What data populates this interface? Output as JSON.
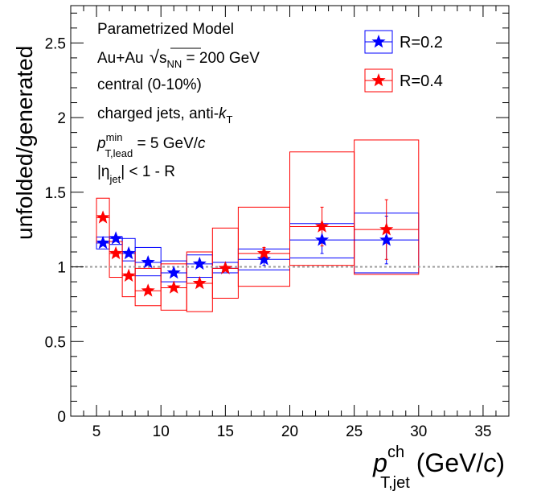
{
  "chart_data": {
    "type": "scatter",
    "ylabel": "unfolded/generated",
    "xlabel_main": "p",
    "xlabel_sup": "ch",
    "xlabel_sub": "T,jet",
    "xlabel_unit_open": "(GeV/",
    "xlabel_unit_c": "c",
    "xlabel_unit_close": ")",
    "xlim": [
      3,
      37
    ],
    "ylim": [
      0,
      2.75
    ],
    "xticks": [
      5,
      10,
      15,
      20,
      25,
      30,
      35
    ],
    "xtick_labels": [
      "5",
      "10",
      "15",
      "20",
      "25",
      "30",
      "35"
    ],
    "yticks": [
      0,
      0.5,
      1,
      1.5,
      2,
      2.5
    ],
    "ytick_labels": [
      "0",
      "0.5",
      "1",
      "1.5",
      "2",
      "2.5"
    ],
    "reference_line": 1,
    "annotations": {
      "line1": "Parametrized Model",
      "line2_a": "Au+Au ",
      "line2_sqrt": "s",
      "line2_sub": "NN",
      "line2_b": " = 200 GeV",
      "line3": "central (0-10%)",
      "line4_a": "charged jets, anti-",
      "line4_k": "k",
      "line4_sub": "T",
      "line5_p": "p",
      "line5_sup": "min",
      "line5_sub": "T,lead",
      "line5_b": " = 5 GeV/",
      "line5_c": "c",
      "line6_a": "|η",
      "line6_sub": "jet",
      "line6_b": "| < 1 - R"
    },
    "series": [
      {
        "name": "R=0.2",
        "color": "#0000ff",
        "points": [
          {
            "x": 5.5,
            "y": 1.16,
            "xlo": 5,
            "xhi": 6,
            "syslo": 1.12,
            "syshi": 1.2,
            "err": 0.01
          },
          {
            "x": 6.5,
            "y": 1.19,
            "xlo": 6,
            "xhi": 7,
            "syslo": 1.15,
            "syshi": 1.2,
            "err": 0.01
          },
          {
            "x": 7.5,
            "y": 1.09,
            "xlo": 7,
            "xhi": 8,
            "syslo": 1.04,
            "syshi": 1.19,
            "err": 0.01
          },
          {
            "x": 9,
            "y": 1.03,
            "xlo": 8,
            "xhi": 10,
            "syslo": 0.94,
            "syshi": 1.13,
            "err": 0.01
          },
          {
            "x": 11,
            "y": 0.96,
            "xlo": 10,
            "xhi": 12,
            "syslo": 0.9,
            "syshi": 1.04,
            "err": 0.01
          },
          {
            "x": 13,
            "y": 1.02,
            "xlo": 12,
            "xhi": 14,
            "syslo": 0.93,
            "syshi": 1.08,
            "err": 0.01
          },
          {
            "x": 15,
            "y": 0.99,
            "xlo": 14,
            "xhi": 16,
            "syslo": 0.96,
            "syshi": 1.03,
            "err": 0.02
          },
          {
            "x": 18,
            "y": 1.05,
            "xlo": 16,
            "xhi": 20,
            "syslo": 0.98,
            "syshi": 1.12,
            "err": 0.04
          },
          {
            "x": 22.5,
            "y": 1.18,
            "xlo": 20,
            "xhi": 25,
            "syslo": 1.06,
            "syshi": 1.29,
            "err": 0.09
          },
          {
            "x": 27.5,
            "y": 1.18,
            "xlo": 25,
            "xhi": 30,
            "syslo": 0.96,
            "syshi": 1.36,
            "err": 0.16
          }
        ]
      },
      {
        "name": "R=0.4",
        "color": "#ff0000",
        "points": [
          {
            "x": 5.5,
            "y": 1.33,
            "xlo": 5,
            "xhi": 6,
            "syslo": 1.16,
            "syshi": 1.46,
            "err": 0.02
          },
          {
            "x": 6.5,
            "y": 1.09,
            "xlo": 6,
            "xhi": 7,
            "syslo": 0.93,
            "syshi": 1.17,
            "err": 0.01
          },
          {
            "x": 7.5,
            "y": 0.94,
            "xlo": 7,
            "xhi": 8,
            "syslo": 0.8,
            "syshi": 1.1,
            "err": 0.01
          },
          {
            "x": 9,
            "y": 0.84,
            "xlo": 8,
            "xhi": 10,
            "syslo": 0.74,
            "syshi": 0.99,
            "err": 0.01
          },
          {
            "x": 11,
            "y": 0.86,
            "xlo": 10,
            "xhi": 12,
            "syslo": 0.71,
            "syshi": 1.02,
            "err": 0.01
          },
          {
            "x": 13,
            "y": 0.89,
            "xlo": 12,
            "xhi": 14,
            "syslo": 0.7,
            "syshi": 1.1,
            "err": 0.01
          },
          {
            "x": 15,
            "y": 0.99,
            "xlo": 14,
            "xhi": 16,
            "syslo": 0.79,
            "syshi": 1.26,
            "err": 0.02
          },
          {
            "x": 18,
            "y": 1.09,
            "xlo": 16,
            "xhi": 20,
            "syslo": 0.87,
            "syshi": 1.4,
            "err": 0.04
          },
          {
            "x": 22.5,
            "y": 1.27,
            "xlo": 20,
            "xhi": 25,
            "syslo": 1.01,
            "syshi": 1.77,
            "err": 0.13
          },
          {
            "x": 27.5,
            "y": 1.25,
            "xlo": 25,
            "xhi": 30,
            "syslo": 0.95,
            "syshi": 1.85,
            "err": 0.2
          }
        ]
      }
    ],
    "legend": [
      {
        "label": "R=0.2",
        "color": "#0000ff"
      },
      {
        "label": "R=0.4",
        "color": "#ff0000"
      }
    ]
  }
}
